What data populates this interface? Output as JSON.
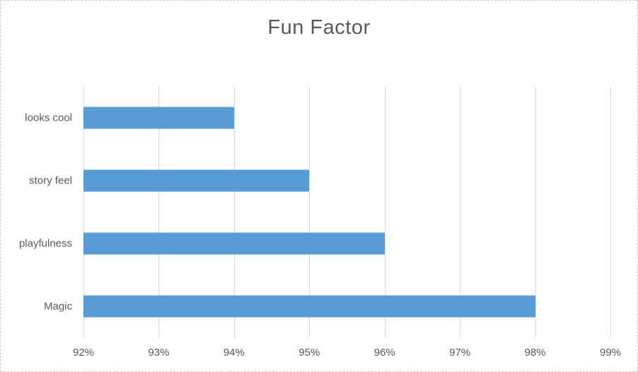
{
  "chart_data": {
    "type": "bar",
    "orientation": "horizontal",
    "title": "Fun Factor",
    "categories": [
      "looks cool",
      "story feel",
      "playfulness",
      "Magic"
    ],
    "values": [
      94,
      95,
      96,
      98
    ],
    "value_suffix": "%",
    "xlim": [
      92,
      99
    ],
    "x_tick_values": [
      92,
      93,
      94,
      95,
      96,
      97,
      98,
      99
    ],
    "x_tick_labels": [
      "92%",
      "93%",
      "94%",
      "95%",
      "96%",
      "97%",
      "98%",
      "99%"
    ],
    "grid": true,
    "legend_position": "none",
    "bar_color": "#5b9bd5",
    "gridline_color": "#d9d9d9",
    "text_color": "#595959",
    "title_color": "#595959",
    "background_color": "#ffffff",
    "border_color": "#c9c9c9"
  }
}
